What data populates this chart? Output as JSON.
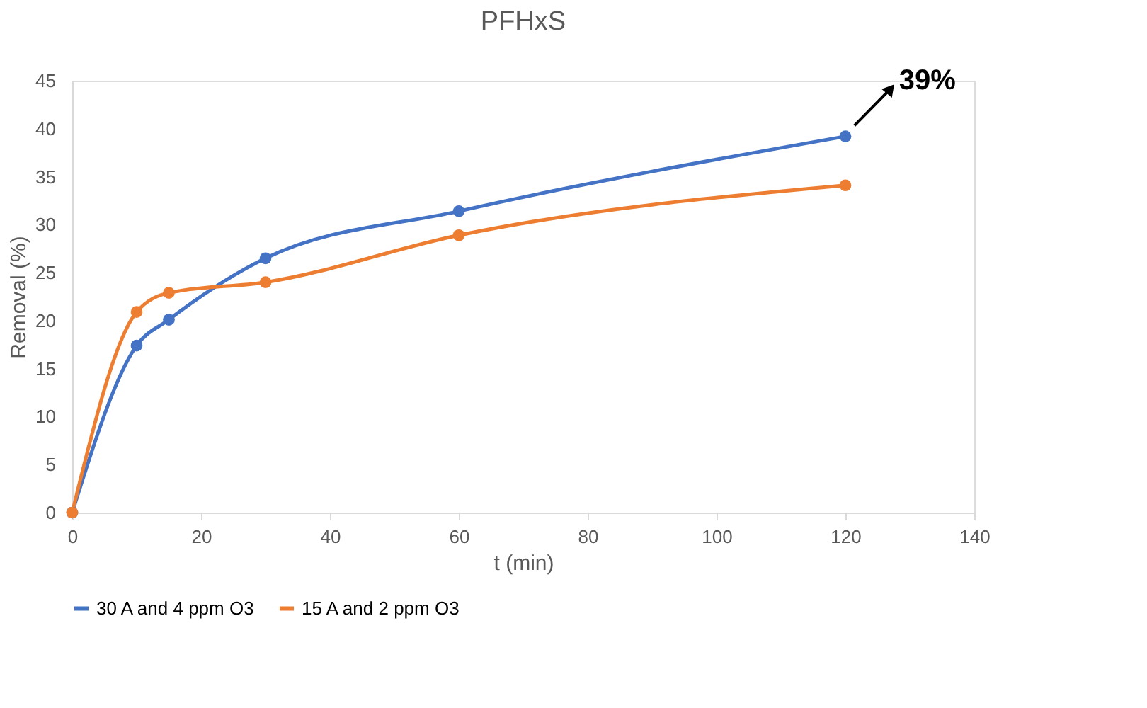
{
  "chart_data": {
    "type": "line",
    "title": "PFHxS",
    "xlabel": "t (min)",
    "ylabel": "Removal (%)",
    "x": [
      0,
      10,
      15,
      30,
      60,
      120
    ],
    "series": [
      {
        "name": "30 A and 4 ppm O3",
        "color": "#4472c4",
        "values": [
          0,
          17.4,
          20.1,
          26.5,
          31.4,
          39.2
        ]
      },
      {
        "name": "15 A and 2 ppm O3",
        "color": "#ed7d31",
        "values": [
          0,
          20.9,
          22.9,
          24.0,
          28.9,
          34.1
        ]
      }
    ],
    "xlim": [
      0,
      140
    ],
    "xticks": [
      0,
      20,
      40,
      60,
      80,
      100,
      120,
      140
    ],
    "ylim": [
      0,
      45
    ],
    "yticks": [
      0,
      5,
      10,
      15,
      20,
      25,
      30,
      35,
      40,
      45
    ],
    "annotations": [
      {
        "text": "39%",
        "x": 120,
        "y": 39.2
      }
    ],
    "grid": false,
    "legend": "bottom",
    "marker": "circle",
    "line_style": "solid"
  }
}
